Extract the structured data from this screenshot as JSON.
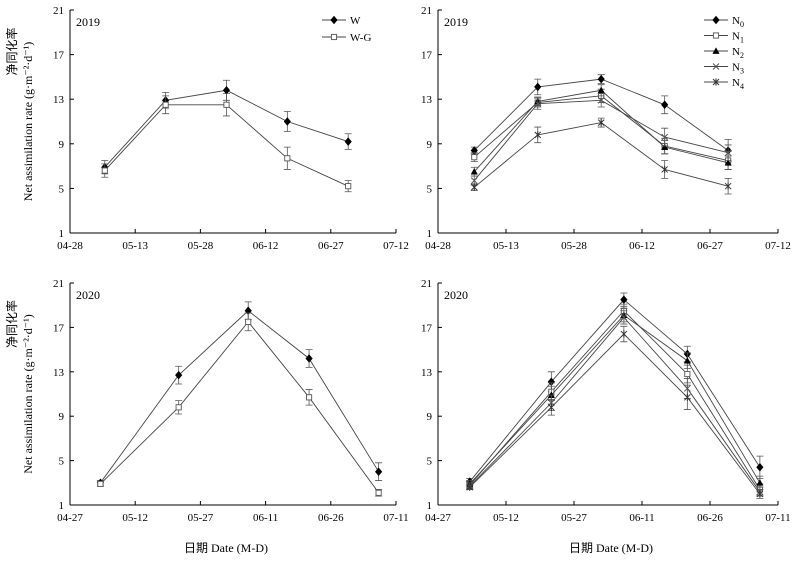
{
  "figure": {
    "shared_xlabels": [
      "日期 Date (M-D)",
      "日期 Date (M-D)"
    ],
    "ylabel_cn": "净同化率",
    "ylabel_en": "Net assimilation rate (g·m⁻²·d⁻¹)"
  },
  "chart_data": [
    {
      "type": "line",
      "panel": "top-left",
      "year_label": "2019",
      "x_ticks": [
        "04-28",
        "05-13",
        "05-28",
        "06-12",
        "06-27",
        "07-12"
      ],
      "y_ticks": [
        1,
        5,
        9,
        13,
        17,
        21
      ],
      "ylim": [
        1,
        21
      ],
      "xlim": [
        0,
        75
      ],
      "x_dates": [
        "05-06",
        "05-20",
        "06-03",
        "06-17",
        "07-01"
      ],
      "x": [
        8,
        22,
        36,
        50,
        64
      ],
      "legend_position": "top-right",
      "series": [
        {
          "name": "W",
          "marker": "diamond",
          "values": [
            6.9,
            12.9,
            13.8,
            11.0,
            9.2
          ],
          "errors": [
            0.6,
            0.7,
            0.9,
            0.9,
            0.7
          ]
        },
        {
          "name": "W-G",
          "marker": "open-square",
          "values": [
            6.6,
            12.5,
            12.5,
            7.7,
            5.2
          ],
          "errors": [
            0.6,
            0.8,
            1.0,
            1.0,
            0.5
          ]
        }
      ]
    },
    {
      "type": "line",
      "panel": "top-right",
      "year_label": "2019",
      "x_ticks": [
        "04-28",
        "05-13",
        "05-28",
        "06-12",
        "06-27",
        "07-12"
      ],
      "y_ticks": [
        1,
        5,
        9,
        13,
        17,
        21
      ],
      "ylim": [
        1,
        21
      ],
      "xlim": [
        0,
        75
      ],
      "x_dates": [
        "05-06",
        "05-20",
        "06-03",
        "06-17",
        "07-01"
      ],
      "x": [
        8,
        22,
        36,
        50,
        64
      ],
      "legend_position": "top-right",
      "series": [
        {
          "name": "N0",
          "label_main": "N",
          "label_sub": "0",
          "marker": "diamond",
          "values": [
            8.4,
            14.1,
            14.8,
            12.5,
            8.4
          ],
          "errors": [
            0.3,
            0.7,
            0.4,
            0.8,
            1.0
          ]
        },
        {
          "name": "N1",
          "label_main": "N",
          "label_sub": "1",
          "marker": "open-square",
          "values": [
            7.8,
            12.7,
            13.3,
            8.8,
            7.5
          ],
          "errors": [
            0.4,
            0.4,
            0.6,
            0.7,
            0.8
          ]
        },
        {
          "name": "N2",
          "label_main": "N",
          "label_sub": "2",
          "marker": "triangle",
          "values": [
            6.5,
            12.8,
            13.8,
            8.7,
            7.3
          ],
          "errors": [
            0.4,
            0.4,
            0.5,
            0.6,
            0.6
          ]
        },
        {
          "name": "N3",
          "label_main": "N",
          "label_sub": "3",
          "marker": "x",
          "values": [
            5.7,
            12.6,
            12.9,
            9.6,
            8.2
          ],
          "errors": [
            0.4,
            0.5,
            0.6,
            0.8,
            0.7
          ]
        },
        {
          "name": "N4",
          "label_main": "N",
          "label_sub": "4",
          "marker": "star",
          "values": [
            5.1,
            9.8,
            10.9,
            6.7,
            5.2
          ],
          "errors": [
            0.3,
            0.7,
            0.4,
            0.8,
            0.7
          ]
        }
      ]
    },
    {
      "type": "line",
      "panel": "bottom-left",
      "year_label": "2020",
      "x_ticks": [
        "04-27",
        "05-12",
        "05-27",
        "06-11",
        "06-26",
        "07-11"
      ],
      "y_ticks": [
        1,
        5,
        9,
        13,
        17,
        21
      ],
      "ylim": [
        1,
        21
      ],
      "xlim": [
        0,
        75
      ],
      "x_dates": [
        "05-04",
        "05-22",
        "06-07",
        "06-21",
        "07-07"
      ],
      "x": [
        7,
        25,
        41,
        55,
        71
      ],
      "legend_position": "none",
      "series": [
        {
          "name": "W",
          "marker": "diamond",
          "values": [
            3.0,
            12.7,
            18.5,
            14.2,
            4.0
          ],
          "errors": [
            0.2,
            0.8,
            0.8,
            0.8,
            0.8
          ]
        },
        {
          "name": "W-G",
          "marker": "open-square",
          "values": [
            2.9,
            9.8,
            17.5,
            10.7,
            2.1
          ],
          "errors": [
            0.2,
            0.6,
            0.8,
            0.7,
            0.3
          ]
        }
      ]
    },
    {
      "type": "line",
      "panel": "bottom-right",
      "year_label": "2020",
      "x_ticks": [
        "04-27",
        "05-12",
        "05-27",
        "06-11",
        "06-26",
        "07-11"
      ],
      "y_ticks": [
        1,
        5,
        9,
        13,
        17,
        21
      ],
      "ylim": [
        1,
        21
      ],
      "xlim": [
        0,
        75
      ],
      "x_dates": [
        "05-04",
        "05-22",
        "06-07",
        "06-21",
        "07-07"
      ],
      "x": [
        7,
        25,
        41,
        55,
        71
      ],
      "legend_position": "none",
      "series": [
        {
          "name": "N0",
          "marker": "diamond",
          "values": [
            3.1,
            12.1,
            19.5,
            14.6,
            4.4
          ],
          "errors": [
            0.3,
            0.9,
            0.6,
            0.7,
            1.0
          ]
        },
        {
          "name": "N1",
          "marker": "open-square",
          "values": [
            2.8,
            11.2,
            18.5,
            12.8,
            2.4
          ],
          "errors": [
            0.3,
            0.8,
            0.6,
            0.8,
            0.5
          ]
        },
        {
          "name": "N2",
          "marker": "triangle",
          "values": [
            2.9,
            10.9,
            18.1,
            14.0,
            3.0
          ],
          "errors": [
            0.3,
            0.8,
            0.6,
            0.7,
            0.6
          ]
        },
        {
          "name": "N3",
          "marker": "x",
          "values": [
            2.7,
            10.2,
            17.9,
            11.5,
            2.2
          ],
          "errors": [
            0.3,
            0.7,
            0.6,
            0.9,
            0.4
          ]
        },
        {
          "name": "N4",
          "marker": "star",
          "values": [
            2.6,
            9.8,
            16.4,
            10.7,
            2.0
          ],
          "errors": [
            0.2,
            0.7,
            0.7,
            1.1,
            0.4
          ]
        }
      ]
    }
  ]
}
